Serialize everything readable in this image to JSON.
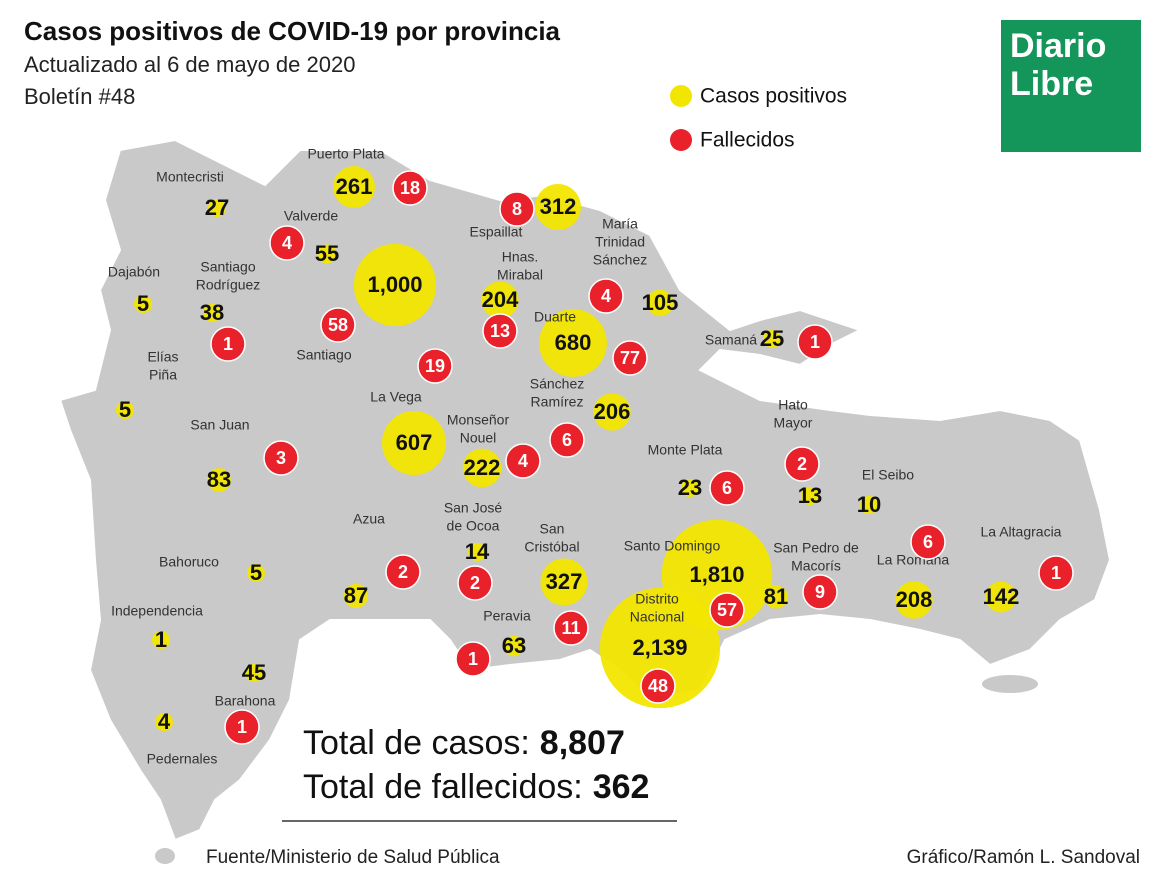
{
  "header": {
    "title": "Casos positivos de COVID-19 por provincia",
    "subtitle": "Actualizado al 6 de mayo de 2020",
    "bulletin": "Boletín #48"
  },
  "logo": {
    "line1": "Diario",
    "line2": "Libre"
  },
  "legend": {
    "cases": "Casos positivos",
    "deaths": "Fallecidos"
  },
  "provinces": [
    {
      "name": [
        "Montecristi"
      ],
      "cases": 27
    },
    {
      "name": [
        "Puerto Plata"
      ],
      "cases": 261,
      "deaths": 18
    },
    {
      "name": [
        "Valverde"
      ],
      "cases": 55,
      "deaths": 4
    },
    {
      "name": [
        "Dajabón"
      ],
      "cases": 5
    },
    {
      "name": [
        "Santiago",
        "Rodríguez"
      ],
      "cases": 38,
      "deaths": 1
    },
    {
      "name": [
        "Santiago"
      ],
      "cases": 1000,
      "cases_label": "1,000",
      "deaths": 58
    },
    {
      "name": [
        "Espaillat"
      ],
      "cases": 312,
      "deaths": 8
    },
    {
      "name": [
        "Hnas.",
        "Mirabal"
      ],
      "cases": 204,
      "deaths": 13
    },
    {
      "name": [
        "María",
        "Trinidad",
        "Sánchez"
      ],
      "cases": 105,
      "deaths": 4
    },
    {
      "name": [
        "Duarte"
      ],
      "cases": 680,
      "deaths": 77
    },
    {
      "name": [
        "Samaná"
      ],
      "cases": 25,
      "deaths": 1
    },
    {
      "name": [
        "Elías",
        "Piña"
      ],
      "cases": 5
    },
    {
      "name": [
        "La Vega"
      ],
      "cases": 607,
      "deaths": 19
    },
    {
      "name": [
        "Sánchez",
        "Ramírez"
      ],
      "cases": 206,
      "deaths": 6
    },
    {
      "name": [
        "Monseñor",
        "Nouel"
      ],
      "cases": 222,
      "deaths": 4
    },
    {
      "name": [
        "San Juan"
      ],
      "cases": 83,
      "deaths": 3
    },
    {
      "name": [
        "Monte Plata"
      ],
      "cases": 23,
      "deaths": 6
    },
    {
      "name": [
        "Hato",
        "Mayor"
      ],
      "cases": 13,
      "deaths": 2
    },
    {
      "name": [
        "El Seibo"
      ],
      "cases": 10
    },
    {
      "name": [
        "La Altagracia"
      ],
      "cases": 142,
      "deaths": 1
    },
    {
      "name": [
        "La Romana"
      ],
      "cases": 208,
      "deaths": 6
    },
    {
      "name": [
        "San Pedro de",
        "Macorís"
      ],
      "cases": 81,
      "deaths": 9
    },
    {
      "name": [
        "Santo Domingo"
      ],
      "cases": 1810,
      "cases_label": "1,810",
      "deaths": 57
    },
    {
      "name": [
        "Distrito",
        "Nacional"
      ],
      "cases": 2139,
      "cases_label": "2,139",
      "deaths": 48
    },
    {
      "name": [
        "San",
        "Cristóbal"
      ],
      "cases": 327,
      "deaths": 11
    },
    {
      "name": [
        "San José",
        "de Ocoa"
      ],
      "cases": 14,
      "deaths": 2
    },
    {
      "name": [
        "Peravia"
      ],
      "cases": 63,
      "deaths": 1
    },
    {
      "name": [
        "Azua"
      ],
      "cases": 87,
      "deaths": 2
    },
    {
      "name": [
        "Bahoruco"
      ],
      "cases": 5
    },
    {
      "name": [
        "Independencia"
      ],
      "cases": 1
    },
    {
      "name": [
        "Barahona"
      ],
      "cases": 45,
      "deaths": 1
    },
    {
      "name": [
        "Pedernales"
      ],
      "cases": 4
    }
  ],
  "totals": [
    {
      "label": "Total de casos:",
      "value": 8807,
      "value_label": "8,807"
    },
    {
      "label": "Total de fallecidos:",
      "value": 362
    }
  ],
  "footer": {
    "source": "Fuente/Ministerio de Salud Pública",
    "credit": "Gráfico/Ramón L. Sandoval"
  }
}
